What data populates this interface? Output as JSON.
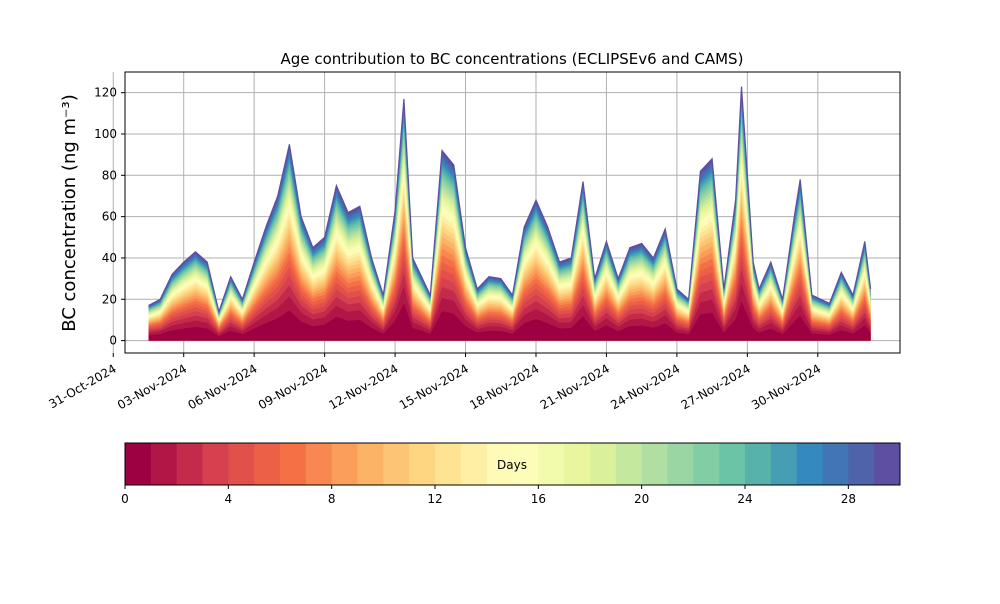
{
  "chart_data": {
    "type": "area",
    "title": "Age contribution to BC concentrations (ECLIPSEv6 and CAMS)",
    "ylabel": "BC concentration (ng m⁻³)",
    "xlabel": "",
    "ylim": [
      -6,
      130
    ],
    "xlim": [
      "2024-10-31T12:00",
      "2024-12-03T12:00"
    ],
    "grid": true,
    "x_ticks": [
      "31-Oct-2024",
      "03-Nov-2024",
      "06-Nov-2024",
      "09-Nov-2024",
      "12-Nov-2024",
      "15-Nov-2024",
      "18-Nov-2024",
      "21-Nov-2024",
      "24-Nov-2024",
      "27-Nov-2024",
      "30-Nov-2024"
    ],
    "y_ticks": [
      0,
      20,
      40,
      60,
      80,
      100,
      120
    ],
    "colorbar": {
      "label": "Days",
      "min": 0,
      "max": 30,
      "step": 1,
      "ticks": [
        0,
        4,
        8,
        12,
        16,
        20,
        24,
        28
      ],
      "colormap": "Spectral",
      "colors": [
        "#9e0142",
        "#d53e4f",
        "#f46d43",
        "#fdae61",
        "#fee08b",
        "#ffffbf",
        "#e6f598",
        "#abdda4",
        "#66c2a5",
        "#3288bd",
        "#5e4fa2"
      ]
    },
    "series": [
      {
        "values": [
          [
            "2024-11-01T12:00",
            17
          ],
          [
            "2024-11-02T00:00",
            20
          ],
          [
            "2024-11-02T12:00",
            32
          ],
          [
            "2024-11-03T00:00",
            38
          ],
          [
            "2024-11-03T12:00",
            43
          ],
          [
            "2024-11-04T00:00",
            38
          ],
          [
            "2024-11-04T12:00",
            14
          ],
          [
            "2024-11-05T00:00",
            31
          ],
          [
            "2024-11-05T12:00",
            20
          ],
          [
            "2024-11-06T00:00",
            38
          ],
          [
            "2024-11-06T12:00",
            55
          ],
          [
            "2024-11-07T00:00",
            70
          ],
          [
            "2024-11-07T12:00",
            95
          ],
          [
            "2024-11-08T00:00",
            60
          ],
          [
            "2024-11-08T12:00",
            45
          ],
          [
            "2024-11-09T00:00",
            50
          ],
          [
            "2024-11-09T12:00",
            75
          ],
          [
            "2024-11-10T00:00",
            62
          ],
          [
            "2024-11-10T12:00",
            65
          ],
          [
            "2024-11-11T00:00",
            40
          ],
          [
            "2024-11-11T12:00",
            22
          ],
          [
            "2024-11-12T00:00",
            63
          ],
          [
            "2024-11-12T09:00",
            117
          ],
          [
            "2024-11-12T18:00",
            40
          ],
          [
            "2024-11-13T12:00",
            22
          ],
          [
            "2024-11-14T00:00",
            92
          ],
          [
            "2024-11-14T12:00",
            85
          ],
          [
            "2024-11-15T00:00",
            45
          ],
          [
            "2024-11-15T12:00",
            25
          ],
          [
            "2024-11-16T00:00",
            31
          ],
          [
            "2024-11-16T12:00",
            30
          ],
          [
            "2024-11-17T00:00",
            22
          ],
          [
            "2024-11-17T12:00",
            55
          ],
          [
            "2024-11-18T00:00",
            68
          ],
          [
            "2024-11-18T12:00",
            55
          ],
          [
            "2024-11-19T00:00",
            38
          ],
          [
            "2024-11-19T12:00",
            40
          ],
          [
            "2024-11-20T00:00",
            77
          ],
          [
            "2024-11-20T12:00",
            30
          ],
          [
            "2024-11-21T00:00",
            48
          ],
          [
            "2024-11-21T12:00",
            30
          ],
          [
            "2024-11-22T00:00",
            45
          ],
          [
            "2024-11-22T12:00",
            47
          ],
          [
            "2024-11-23T00:00",
            40
          ],
          [
            "2024-11-23T12:00",
            54
          ],
          [
            "2024-11-24T00:00",
            25
          ],
          [
            "2024-11-24T12:00",
            20
          ],
          [
            "2024-11-25T00:00",
            82
          ],
          [
            "2024-11-25T12:00",
            88
          ],
          [
            "2024-11-26T00:00",
            25
          ],
          [
            "2024-11-26T12:00",
            68
          ],
          [
            "2024-11-26T18:00",
            123
          ],
          [
            "2024-11-27T06:00",
            38
          ],
          [
            "2024-11-27T12:00",
            25
          ],
          [
            "2024-11-28T00:00",
            38
          ],
          [
            "2024-11-28T12:00",
            20
          ],
          [
            "2024-11-29T00:00",
            60
          ],
          [
            "2024-11-29T06:00",
            78
          ],
          [
            "2024-11-29T18:00",
            22
          ],
          [
            "2024-11-30T12:00",
            18
          ],
          [
            "2024-12-01T00:00",
            33
          ],
          [
            "2024-12-01T12:00",
            22
          ],
          [
            "2024-12-02T00:00",
            48
          ],
          [
            "2024-12-02T06:00",
            25
          ]
        ]
      }
    ]
  }
}
